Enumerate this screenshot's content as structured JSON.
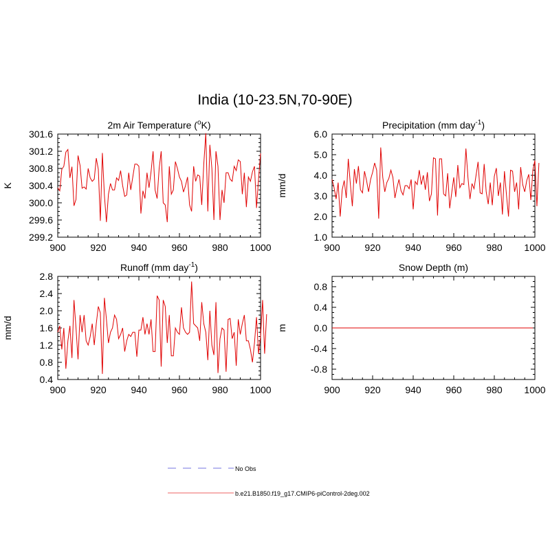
{
  "main_title": "India (10-23.5N,70-90E)",
  "colors": {
    "series": "#e00000",
    "obs": "#8f8fe8",
    "legend_model": "#f08080",
    "axis": "#000000"
  },
  "chart_data": [
    {
      "type": "line",
      "title": "2m Air Temperature (",
      "title_sup": "o",
      "title_after": "K)",
      "ylabel": "K",
      "xlim": [
        900,
        1000
      ],
      "ylim": [
        299.2,
        301.6
      ],
      "xticks": [
        900,
        920,
        940,
        960,
        980,
        1000
      ],
      "yticks": [
        "299.2",
        "299.6",
        "300.0",
        "300.4",
        "300.8",
        "301.2",
        "301.6"
      ],
      "x_start": 900,
      "series": [
        {
          "values": [
            300.35,
            300.28,
            300.78,
            300.85,
            301.18,
            301.24,
            300.58,
            300.84,
            299.93,
            300.08,
            301.1,
            300.87,
            300.34,
            300.37,
            300.32,
            300.8,
            300.58,
            300.5,
            300.55,
            301.04,
            300.78,
            299.58,
            301.16,
            300.18,
            299.55,
            300.2,
            300.45,
            300.3,
            300.3,
            300.58,
            300.52,
            300.75,
            300.4,
            300.15,
            300.18,
            300.7,
            300.3,
            300.6,
            300.9,
            300.9,
            300.85,
            299.75,
            300.28,
            300.1,
            300.7,
            300.35,
            300.72,
            301.2,
            300.3,
            300.1,
            300.8,
            301.2,
            300.0,
            299.95,
            299.55,
            300.85,
            300.2,
            300.3,
            300.96,
            300.8,
            300.6,
            300.5,
            300.25,
            300.4,
            300.6,
            299.95,
            299.8,
            300.85,
            300.5,
            300.65,
            300.62,
            299.95,
            300.9,
            301.62,
            299.8,
            301.35,
            300.8,
            299.6,
            301.2,
            300.85,
            299.6,
            300.3,
            300.0,
            300.7,
            300.7,
            300.55,
            300.5,
            300.85,
            300.75,
            301.0,
            300.96,
            300.2,
            300.7,
            299.9,
            300.6,
            300.5,
            300.72,
            300.85,
            299.88,
            300.55,
            301.15
          ]
        }
      ]
    },
    {
      "type": "line",
      "title": "Precipitation (mm day",
      "title_sup": "-1",
      "title_after": ")",
      "ylabel": "mm/d",
      "xlim": [
        900,
        1000
      ],
      "ylim": [
        1.0,
        6.0
      ],
      "xticks": [
        900,
        920,
        940,
        960,
        980,
        1000
      ],
      "yticks": [
        "1.0",
        "2.0",
        "3.0",
        "4.0",
        "5.0",
        "6.0"
      ],
      "x_start": 900,
      "series": [
        {
          "values": [
            3.8,
            3.4,
            2.85,
            3.65,
            2.0,
            3.3,
            3.75,
            2.9,
            4.8,
            3.6,
            2.5,
            4.3,
            3.6,
            4.45,
            3.3,
            3.15,
            4.2,
            3.75,
            3.2,
            3.8,
            4.15,
            4.6,
            4.25,
            1.9,
            5.35,
            3.9,
            3.2,
            3.65,
            3.85,
            4.25,
            3.9,
            2.9,
            3.4,
            3.8,
            3.25,
            3.05,
            3.5,
            3.5,
            3.35,
            3.8,
            2.35,
            3.7,
            3.55,
            4.25,
            3.55,
            4.0,
            3.3,
            4.15,
            2.75,
            3.1,
            4.85,
            4.8,
            2.05,
            4.8,
            4.8,
            3.1,
            3.0,
            4.1,
            2.4,
            3.15,
            3.9,
            2.95,
            4.5,
            3.4,
            3.6,
            3.55,
            5.3,
            3.9,
            2.85,
            3.6,
            3.35,
            4.0,
            4.65,
            3.15,
            3.1,
            4.55,
            3.2,
            2.6,
            3.65,
            2.55,
            3.95,
            4.35,
            3.0,
            3.65,
            2.1,
            4.2,
            3.05,
            2.0,
            4.25,
            4.2,
            3.2,
            3.65,
            2.35,
            4.4,
            3.55,
            3.2,
            3.75,
            4.05,
            2.8,
            4.25,
            4.72,
            2.5,
            4.6
          ]
        }
      ]
    },
    {
      "type": "line",
      "title": "Runoff (mm day",
      "title_sup": "-1",
      "title_after": ")",
      "ylabel": "mm/d",
      "xlim": [
        900,
        1000
      ],
      "ylim": [
        0.4,
        2.8
      ],
      "xticks": [
        900,
        920,
        940,
        960,
        980,
        1000
      ],
      "yticks": [
        "0.4",
        "0.8",
        "1.2",
        "1.6",
        "2.0",
        "2.4",
        "2.8"
      ],
      "x_start": 900,
      "series": [
        {
          "values": [
            1.5,
            1.65,
            1.1,
            1.6,
            0.65,
            1.3,
            1.65,
            0.9,
            2.25,
            1.6,
            0.87,
            1.9,
            1.5,
            1.9,
            1.3,
            1.2,
            1.4,
            1.7,
            1.2,
            1.7,
            2.1,
            1.95,
            0.53,
            2.3,
            1.8,
            1.25,
            1.5,
            1.6,
            1.9,
            1.8,
            1.35,
            1.45,
            1.6,
            1.05,
            1.3,
            1.45,
            1.4,
            1.5,
            1.5,
            0.93,
            1.55,
            1.55,
            1.85,
            1.45,
            1.7,
            1.45,
            1.8,
            1.05,
            1.05,
            2.35,
            2.25,
            0.7,
            2.25,
            2.1,
            1.25,
            1.9,
            0.95,
            0.95,
            1.6,
            1.5,
            1.45,
            2.08,
            1.6,
            1.5,
            1.45,
            1.5,
            2.68,
            1.7,
            1.65,
            1.6,
            1.3,
            2.2,
            1.7,
            1.5,
            0.85,
            2.0,
            1.2,
            0.97,
            2.2,
            0.55,
            1.35,
            1.6,
            1.55,
            0.58,
            1.8,
            1.82,
            1.35,
            1.5,
            0.72,
            1.8,
            1.45,
            1.7,
            1.9,
            1.3,
            1.3,
            1.1,
            0.8,
            1.25,
            1.85,
            1.0,
            1.4,
            2.25,
            1.0,
            1.92
          ]
        }
      ]
    },
    {
      "type": "line",
      "title": "Snow Depth (m)",
      "ylabel": "m",
      "xlim": [
        900,
        1000
      ],
      "ylim": [
        -1.0,
        1.0
      ],
      "xticks": [
        900,
        920,
        940,
        960,
        980,
        1000
      ],
      "yticks": [
        "-0.8",
        "-0.4",
        "0.0",
        "0.4",
        "0.8"
      ],
      "ytick_values": [
        -0.8,
        -0.4,
        0.0,
        0.4,
        0.8
      ],
      "x_start": 900,
      "series": [
        {
          "values": [
            0.0,
            0.0,
            0.0,
            0.0,
            0.0,
            0.0,
            0.0,
            0.0,
            0.0,
            0.0,
            0.0,
            0.0,
            0.0,
            0.0,
            0.0,
            0.0,
            0.0,
            0.0,
            0.0,
            0.0,
            0.0,
            0.0,
            0.0,
            0.0,
            0.0,
            0.0,
            0.0,
            0.0,
            0.0,
            0.0,
            0.0,
            0.0,
            0.0,
            0.0,
            0.0,
            0.0,
            0.0,
            0.0,
            0.0,
            0.0,
            0.0,
            0.0,
            0.0,
            0.0,
            0.0,
            0.0,
            0.0,
            0.0,
            0.0,
            0.0,
            0.0,
            0.0,
            0.0,
            0.0,
            0.0,
            0.0,
            0.0,
            0.0,
            0.0,
            0.0,
            0.0,
            0.0,
            0.0,
            0.0,
            0.0,
            0.0,
            0.0,
            0.0,
            0.0,
            0.0,
            0.0,
            0.0,
            0.0,
            0.0,
            0.0,
            0.0,
            0.0,
            0.0,
            0.0,
            0.0,
            0.0,
            0.0,
            0.0,
            0.0,
            0.0,
            0.0,
            0.0,
            0.0,
            0.0,
            0.0,
            0.0,
            0.0,
            0.0,
            0.0,
            0.0,
            0.0,
            0.0,
            0.0,
            0.0,
            0.0
          ]
        }
      ]
    }
  ],
  "legend": [
    {
      "label": "No Obs",
      "style": "dashed"
    },
    {
      "label": "b.e21.B1850.f19_g17.CMIP6-piControl-2deg.002",
      "style": "solid"
    }
  ]
}
